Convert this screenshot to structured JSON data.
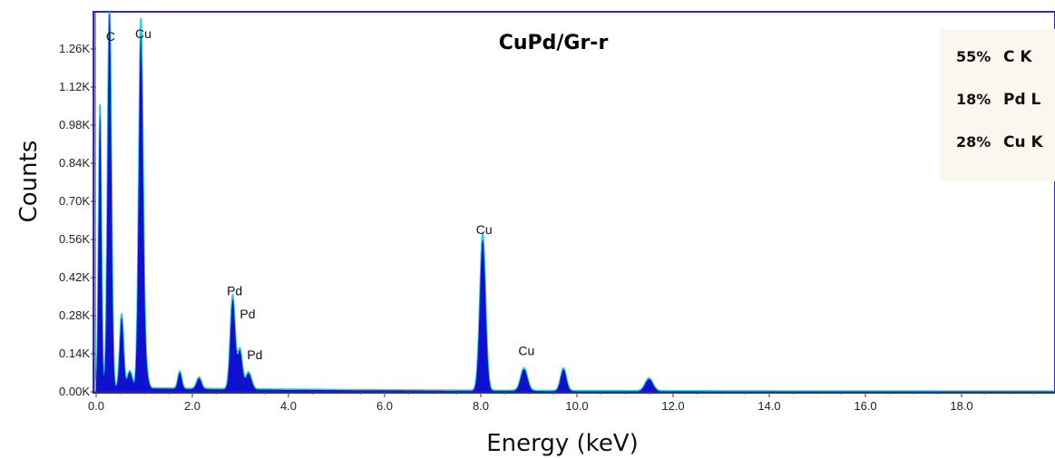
{
  "chart_data": {
    "type": "area",
    "title": "CuPd/Gr-r",
    "xlabel": "Energy (keV)",
    "ylabel": "Counts",
    "xlim": [
      0,
      20
    ],
    "ylim": [
      0,
      1400
    ],
    "x_ticks": [
      {
        "value": 0,
        "label": "0.0"
      },
      {
        "value": 2,
        "label": "2.0"
      },
      {
        "value": 4,
        "label": "4.0"
      },
      {
        "value": 6,
        "label": "6.0"
      },
      {
        "value": 8,
        "label": "8.0"
      },
      {
        "value": 10,
        "label": "10.0"
      },
      {
        "value": 12,
        "label": "12.0"
      },
      {
        "value": 14,
        "label": "14.0"
      },
      {
        "value": 16,
        "label": "16.0"
      },
      {
        "value": 18,
        "label": "18.0"
      }
    ],
    "y_ticks": [
      {
        "value": 0,
        "label": "0.00K"
      },
      {
        "value": 140,
        "label": "0.14K"
      },
      {
        "value": 280,
        "label": "0.28K"
      },
      {
        "value": 420,
        "label": "0.42K"
      },
      {
        "value": 560,
        "label": "0.56K"
      },
      {
        "value": 700,
        "label": "0.70K"
      },
      {
        "value": 840,
        "label": "0.84K"
      },
      {
        "value": 980,
        "label": "0.98K"
      },
      {
        "value": 1120,
        "label": "1.12K"
      },
      {
        "value": 1260,
        "label": "1.26K"
      }
    ],
    "grid": false,
    "legend_position": "top-right",
    "legend_entries": [
      {
        "percent": "55%",
        "label": "C  K"
      },
      {
        "percent": "18%",
        "label": "Pd L"
      },
      {
        "percent": "28%",
        "label": "Cu K"
      }
    ],
    "series": [
      {
        "fill_color": "#1010d0",
        "outline_color": "#20d0e0",
        "background": 15,
        "peaks": [
          {
            "x": 0.08,
            "height": 1000,
            "width": 0.03
          },
          {
            "x": 0.277,
            "height": 1380,
            "width": 0.04
          },
          {
            "x": 0.53,
            "height": 260,
            "width": 0.04
          },
          {
            "x": 0.7,
            "height": 60,
            "width": 0.05
          },
          {
            "x": 0.93,
            "height": 1290,
            "width": 0.045
          },
          {
            "x": 1.02,
            "height": 80,
            "width": 0.05
          },
          {
            "x": 1.74,
            "height": 60,
            "width": 0.04
          },
          {
            "x": 2.14,
            "height": 40,
            "width": 0.05
          },
          {
            "x": 2.84,
            "height": 330,
            "width": 0.05
          },
          {
            "x": 2.99,
            "height": 140,
            "width": 0.05
          },
          {
            "x": 3.17,
            "height": 60,
            "width": 0.06
          },
          {
            "x": 8.04,
            "height": 555,
            "width": 0.06
          },
          {
            "x": 8.9,
            "height": 80,
            "width": 0.07
          },
          {
            "x": 9.72,
            "height": 80,
            "width": 0.06
          },
          {
            "x": 11.5,
            "height": 45,
            "width": 0.08
          }
        ]
      }
    ],
    "annotations": [
      {
        "text": "C",
        "x": 0.3,
        "y": 1290
      },
      {
        "text": "Cu",
        "x": 0.98,
        "y": 1300
      },
      {
        "text": "Pd",
        "x": 2.88,
        "y": 355
      },
      {
        "text": "Pd",
        "x": 3.15,
        "y": 270
      },
      {
        "text": "Pd",
        "x": 3.3,
        "y": 120
      },
      {
        "text": "Cu",
        "x": 8.07,
        "y": 580
      },
      {
        "text": "Cu",
        "x": 8.95,
        "y": 135
      }
    ]
  }
}
